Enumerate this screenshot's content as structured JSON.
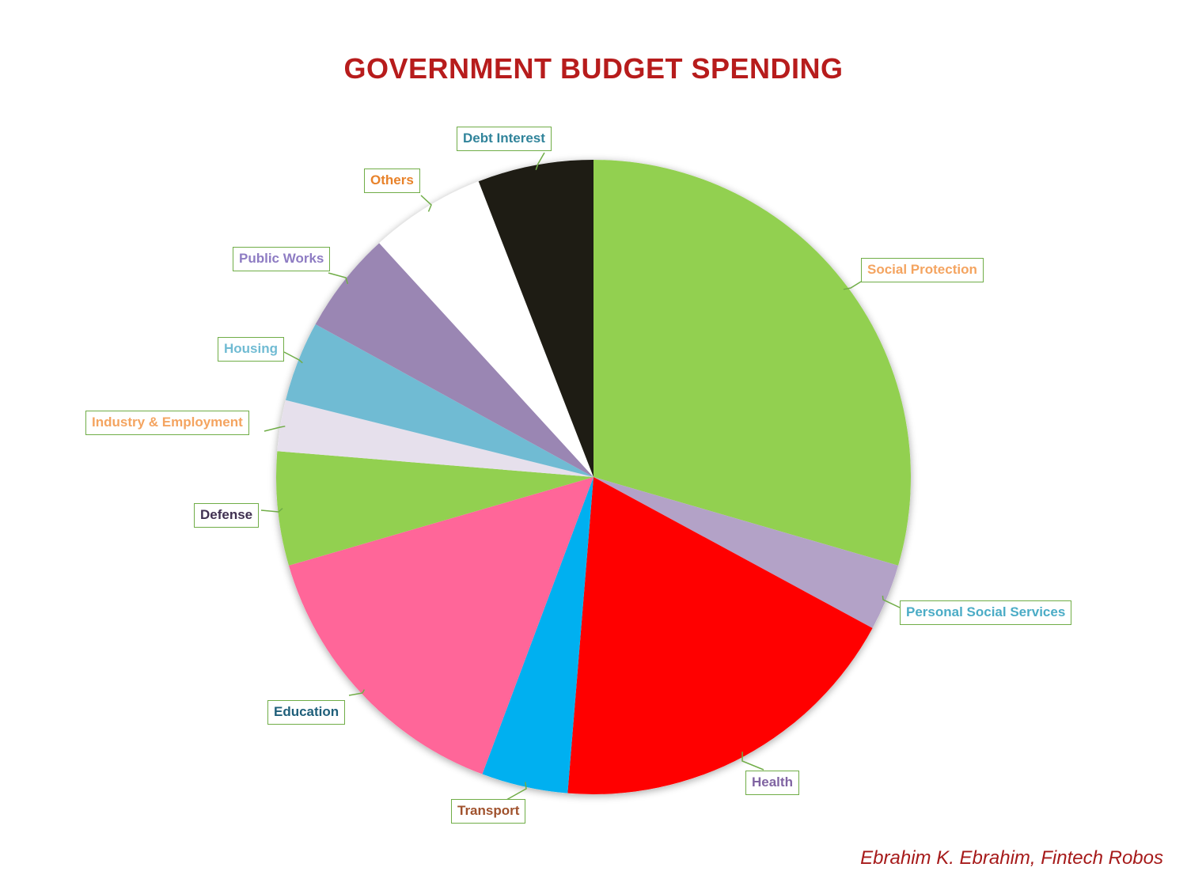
{
  "chart_data": {
    "type": "pie",
    "title": "GOVERNMENT BUDGET SPENDING",
    "slices": [
      {
        "label": "Social Protection",
        "value": 29.5,
        "color": "#92D050",
        "label_color": "#F4A460"
      },
      {
        "label": "Personal Social Services",
        "value": 3.4,
        "color": "#B3A2C7",
        "label_color": "#4BACC6"
      },
      {
        "label": "Health",
        "value": 18.4,
        "color": "#FF0000",
        "label_color": "#8064A2"
      },
      {
        "label": "Transport",
        "value": 4.4,
        "color": "#00B0F0",
        "label_color": "#A0522D"
      },
      {
        "label": "Education",
        "value": 14.8,
        "color": "#FF6699",
        "label_color": "#1F5F7A"
      },
      {
        "label": "Defense",
        "value": 5.8,
        "color": "#92D050",
        "label_color": "#403151"
      },
      {
        "label": "Industry & Employment",
        "value": 2.6,
        "color": "#E6E0EC",
        "label_color": "#F4A460"
      },
      {
        "label": "Housing",
        "value": 4.1,
        "color": "#70BBD3",
        "label_color": "#70BBD3"
      },
      {
        "label": "Public Works",
        "value": 5.2,
        "color": "#9A86B3",
        "label_color": "#8E7CC3"
      },
      {
        "label": "Others",
        "value": 5.9,
        "color": "#FFFFFF",
        "label_color": "#E8822A"
      },
      {
        "label": "Debt Interest",
        "value": 5.9,
        "color": "#1E1C14",
        "label_color": "#31849B"
      }
    ]
  },
  "credit": "Ebrahim K. Ebrahim, Fintech Robos"
}
